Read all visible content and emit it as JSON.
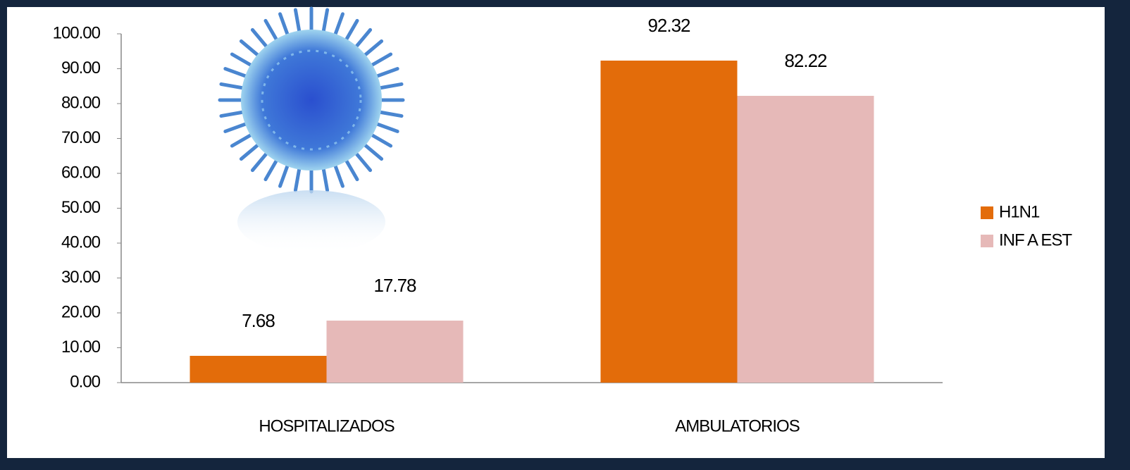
{
  "chart_data": {
    "type": "bar",
    "categories": [
      "HOSPITALIZADOS",
      "AMBULATORIOS"
    ],
    "series": [
      {
        "name": "H1N1",
        "color": "#e36c0a",
        "values": [
          7.68,
          92.32
        ]
      },
      {
        "name": "INF A EST",
        "color": "#e6b9b8",
        "values": [
          17.78,
          82.22
        ]
      }
    ],
    "ylim": [
      0,
      100
    ],
    "yticks": [
      {
        "value": 0,
        "label": "0.00"
      },
      {
        "value": 10,
        "label": "10.00"
      },
      {
        "value": 20,
        "label": "20.00"
      },
      {
        "value": 30,
        "label": "30.00"
      },
      {
        "value": 40,
        "label": "40.00"
      },
      {
        "value": 50,
        "label": "50.00"
      },
      {
        "value": 60,
        "label": "60.00"
      },
      {
        "value": 70,
        "label": "70.00"
      },
      {
        "value": 80,
        "label": "80.00"
      },
      {
        "value": 90,
        "label": "90.00"
      },
      {
        "value": 100,
        "label": "100.00"
      }
    ],
    "legend": "right"
  }
}
